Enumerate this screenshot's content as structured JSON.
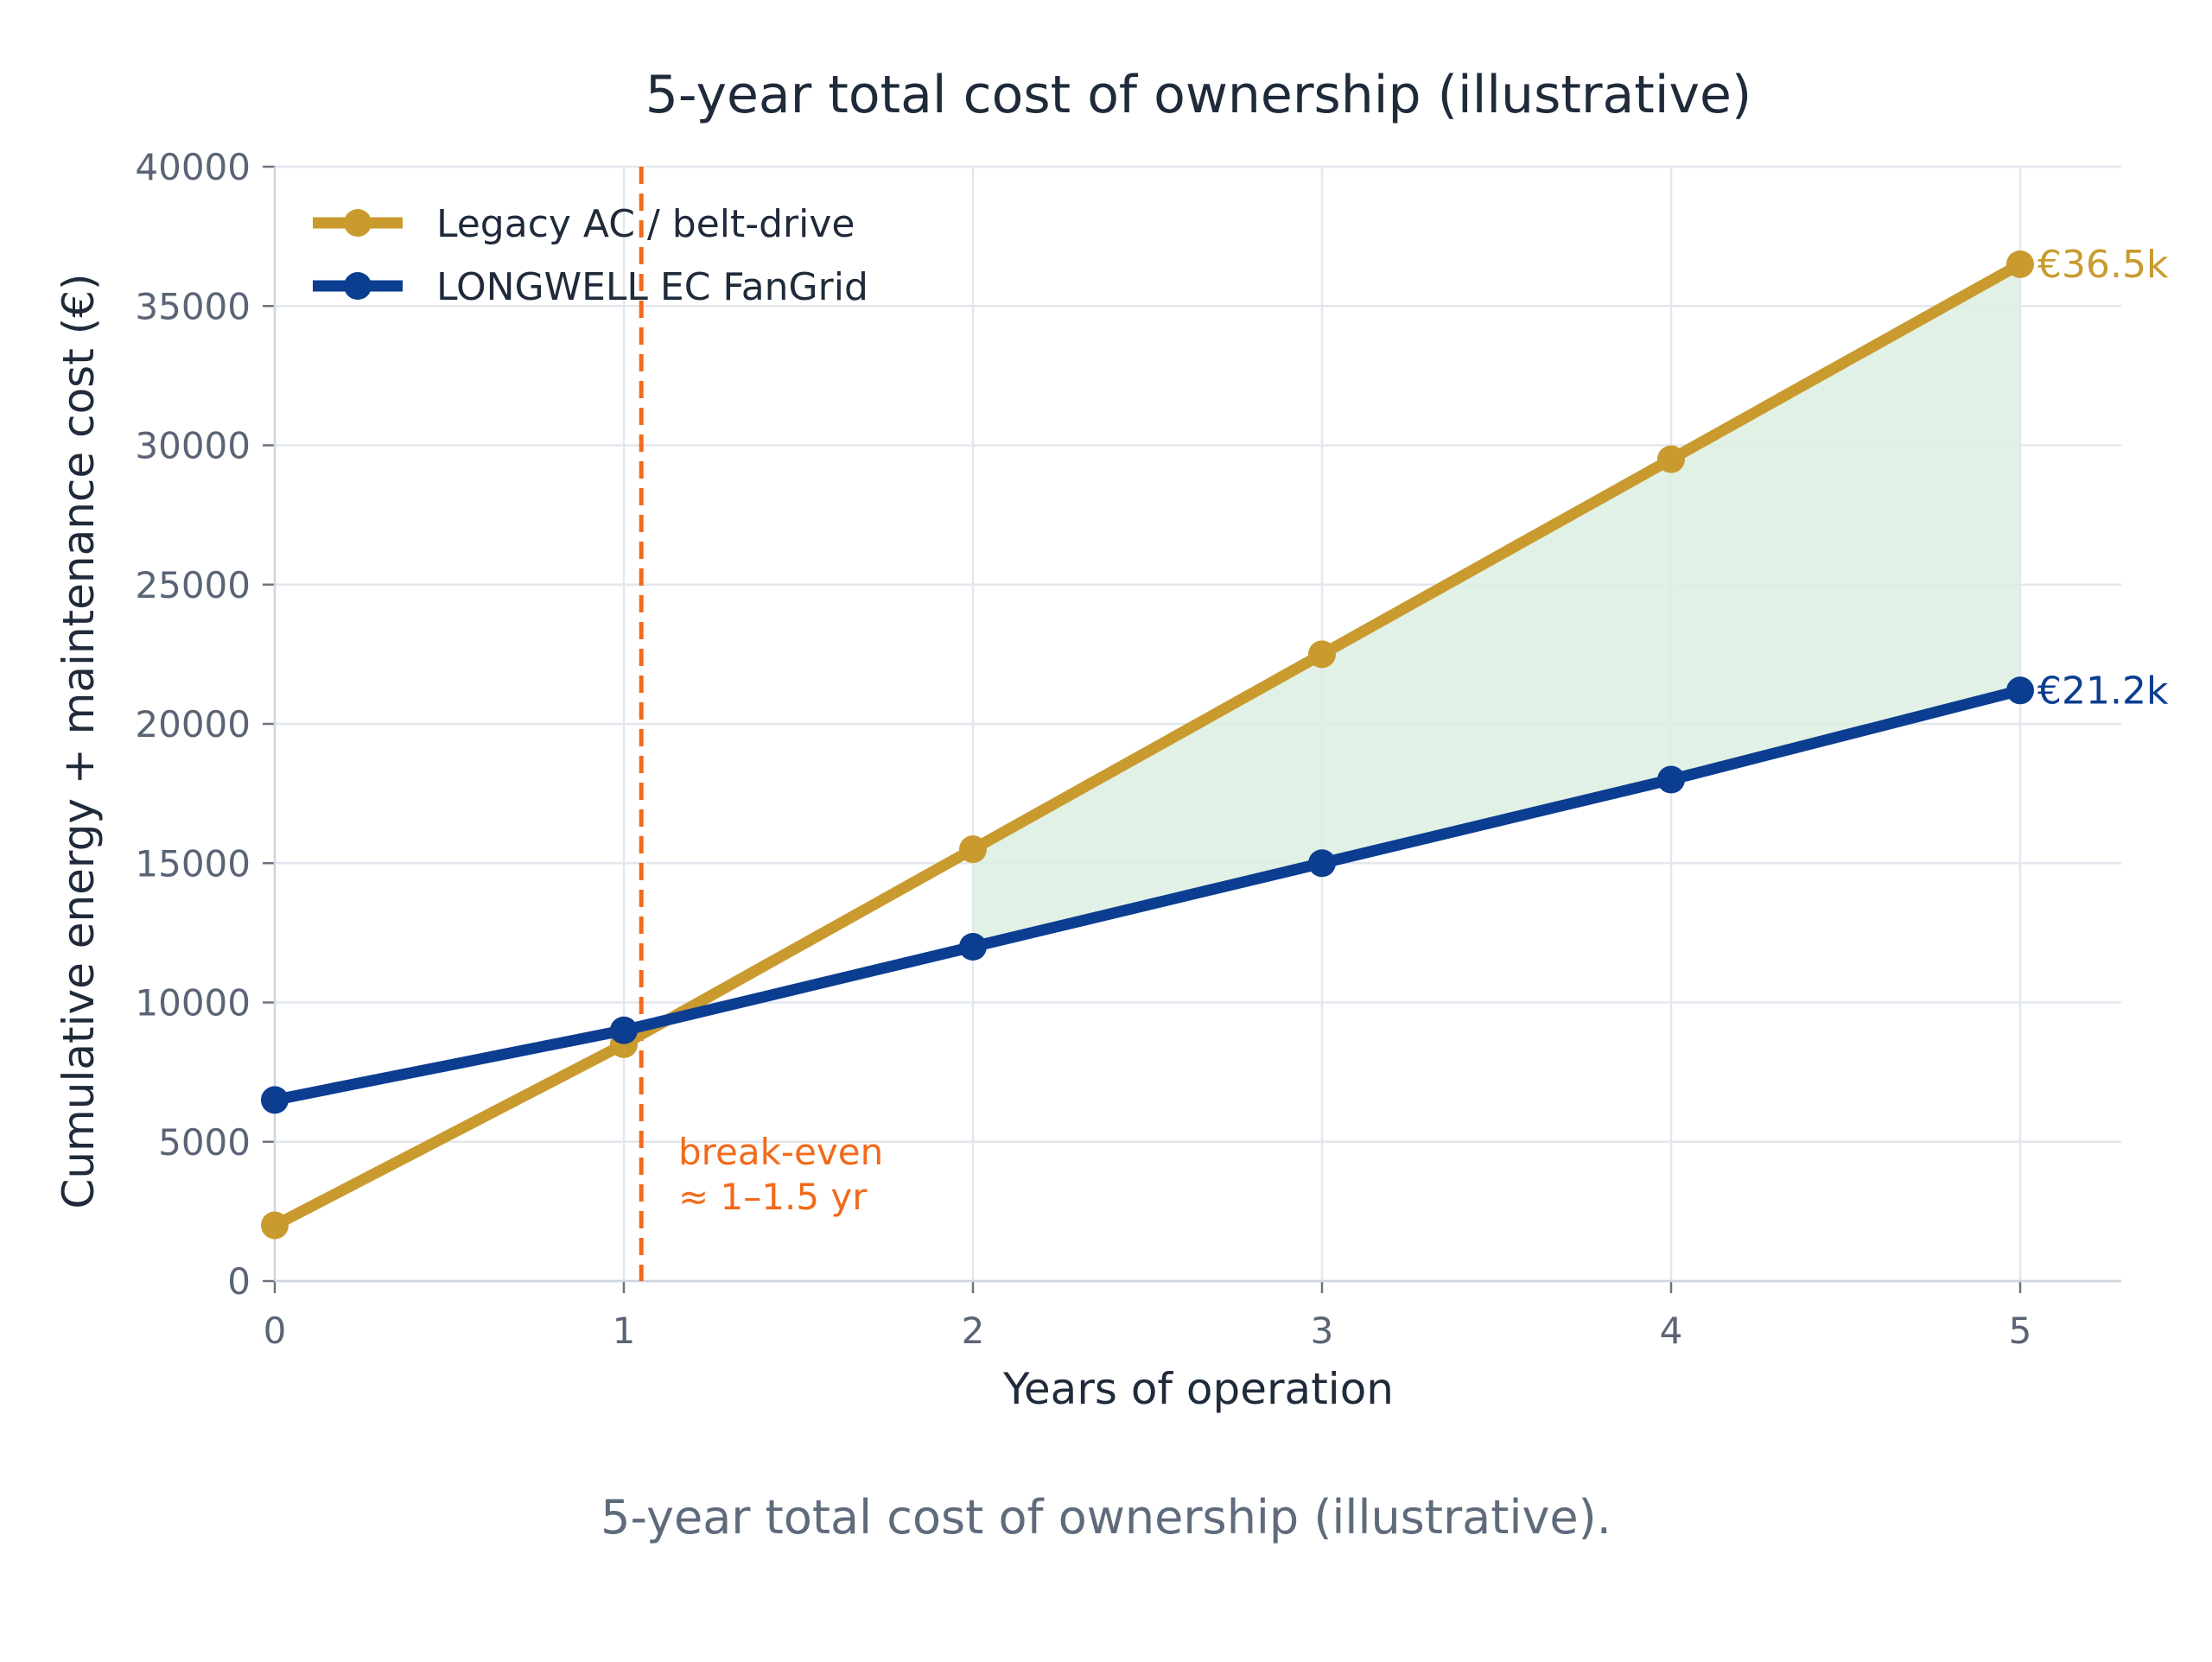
{
  "chart_data": {
    "type": "line",
    "title": "5-year total cost of ownership (illustrative)",
    "xlabel": "Years of operation",
    "ylabel": "Cumulative energy + maintenance cost (€)",
    "x": [
      0,
      1,
      2,
      3,
      4,
      5
    ],
    "xlim": [
      0,
      5.3
    ],
    "ylim": [
      0,
      40000
    ],
    "xticks": [
      "0",
      "1",
      "2",
      "3",
      "4",
      "5"
    ],
    "yticks": [
      "0",
      "5000",
      "10000",
      "15000",
      "20000",
      "25000",
      "30000",
      "35000",
      "40000"
    ],
    "grid": true,
    "legend_position": "top-left",
    "series": [
      {
        "name": "Legacy AC / belt-drive",
        "values": [
          2000,
          8500,
          15500,
          22500,
          29500,
          36500
        ],
        "color": "#c99a2e",
        "end_label": "€36.5k"
      },
      {
        "name": "LONGWELL EC FanGrid",
        "values": [
          6500,
          9000,
          12000,
          15000,
          18000,
          21200
        ],
        "color": "#0b3d91",
        "end_label": "€21.2k"
      }
    ],
    "shaded_region": {
      "x_from": 2,
      "x_to": 5,
      "color": "#dcefe0"
    },
    "break_even": {
      "x": 1.05,
      "color": "#f26a1b",
      "label_line1": "break-even",
      "label_line2": "≈ 1–1.5 yr"
    }
  },
  "caption": "5-year total cost of ownership (illustrative)."
}
